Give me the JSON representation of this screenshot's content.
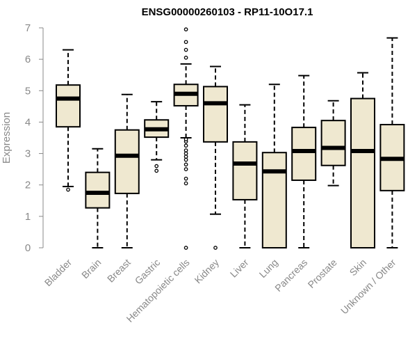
{
  "chart_data": {
    "type": "boxplot",
    "title": "ENSG00000260103 - RP11-10O17.1",
    "ylabel": "Expression",
    "ylim": [
      0,
      7
    ],
    "yticks": [
      "0",
      "1",
      "2",
      "3",
      "4",
      "5",
      "6",
      "7"
    ],
    "grid": false,
    "colors": {
      "box_fill": "#efe8d0",
      "stroke": "#000000",
      "axis": "#888888"
    },
    "categories": [
      "Bladder",
      "Brain",
      "Breast",
      "Gastric",
      "Hematopoietic cells",
      "Kidney",
      "Liver",
      "Lung",
      "Pancreas",
      "Prostate",
      "Skin",
      "Unknown / Other"
    ],
    "boxes": [
      {
        "q1": 3.85,
        "median": 4.75,
        "q3": 5.18,
        "whisker_low": 1.95,
        "whisker_high": 6.3,
        "outliers": [
          1.85
        ]
      },
      {
        "q1": 1.27,
        "median": 1.75,
        "q3": 2.4,
        "whisker_low": 0,
        "whisker_high": 3.15,
        "outliers": []
      },
      {
        "q1": 1.73,
        "median": 2.93,
        "q3": 3.75,
        "whisker_low": 0,
        "whisker_high": 4.88,
        "outliers": []
      },
      {
        "q1": 3.52,
        "median": 3.77,
        "q3": 4.07,
        "whisker_low": 2.8,
        "whisker_high": 4.65,
        "outliers": [
          2.45,
          2.6
        ]
      },
      {
        "q1": 4.52,
        "median": 4.9,
        "q3": 5.2,
        "whisker_low": 3.5,
        "whisker_high": 5.85,
        "outliers": [
          0,
          2.05,
          2.2,
          2.5,
          2.65,
          2.8,
          2.9,
          3.0,
          3.1,
          3.25,
          3.38,
          3.45,
          6.05,
          6.3,
          6.55,
          6.95
        ]
      },
      {
        "q1": 3.37,
        "median": 4.6,
        "q3": 5.13,
        "whisker_low": 1.07,
        "whisker_high": 5.77,
        "outliers": [
          0
        ]
      },
      {
        "q1": 1.53,
        "median": 2.68,
        "q3": 3.37,
        "whisker_low": 0,
        "whisker_high": 4.55,
        "outliers": []
      },
      {
        "q1": 0,
        "median": 2.43,
        "q3": 3.03,
        "whisker_low": 0,
        "whisker_high": 5.2,
        "outliers": []
      },
      {
        "q1": 2.15,
        "median": 3.08,
        "q3": 3.83,
        "whisker_low": 0,
        "whisker_high": 5.48,
        "outliers": []
      },
      {
        "q1": 2.62,
        "median": 3.18,
        "q3": 4.05,
        "whisker_low": 1.98,
        "whisker_high": 4.68,
        "outliers": []
      },
      {
        "q1": 0,
        "median": 3.08,
        "q3": 4.75,
        "whisker_low": 0,
        "whisker_high": 5.57,
        "outliers": []
      },
      {
        "q1": 1.82,
        "median": 2.83,
        "q3": 3.92,
        "whisker_low": 0,
        "whisker_high": 6.68,
        "outliers": []
      }
    ]
  }
}
